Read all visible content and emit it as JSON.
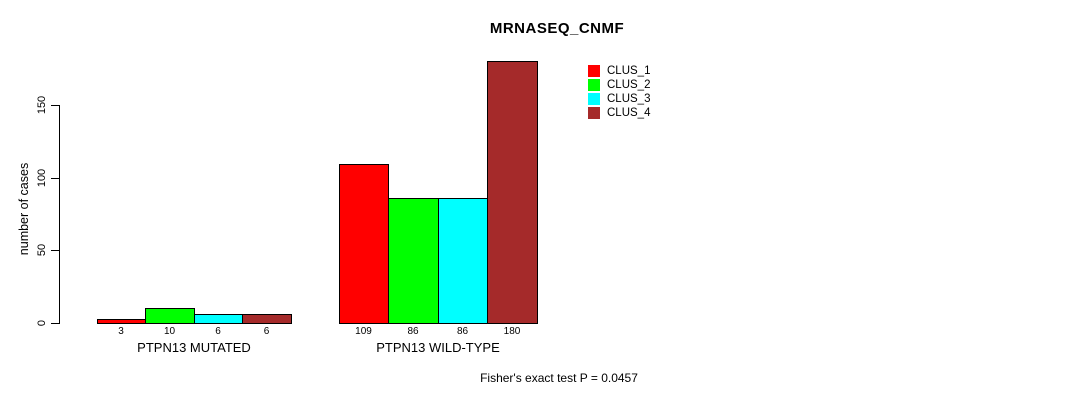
{
  "chart_data": {
    "type": "bar",
    "title": "MRNASEQ_CNMF",
    "xlabel": "",
    "ylabel": "number of cases",
    "categories": [
      "PTPN13 MUTATED",
      "PTPN13 WILD-TYPE"
    ],
    "series": [
      {
        "name": "CLUS_1",
        "color": "#ff0000",
        "values": [
          3,
          109
        ]
      },
      {
        "name": "CLUS_2",
        "color": "#00ff00",
        "values": [
          10,
          86
        ]
      },
      {
        "name": "CLUS_3",
        "color": "#00ffff",
        "values": [
          6,
          86
        ]
      },
      {
        "name": "CLUS_4",
        "color": "#a52a2a",
        "values": [
          6,
          180
        ]
      }
    ],
    "yticks": [
      0,
      50,
      100,
      150
    ],
    "ylim": [
      0,
      150
    ],
    "grid": false,
    "legend_position": "top-right",
    "bar_value_labels_shown": true,
    "annotation": "Fisher's exact test P = 0.0457"
  }
}
